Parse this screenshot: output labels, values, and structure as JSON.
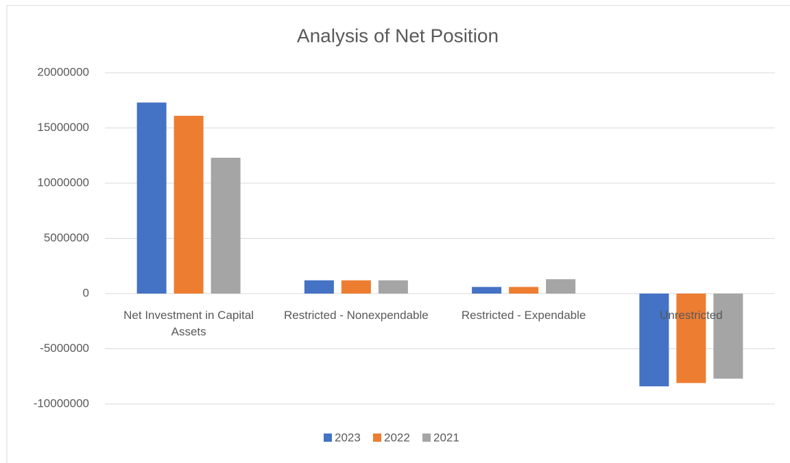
{
  "chart_data": {
    "type": "bar",
    "title": "Analysis of Net Position",
    "categories": [
      "Net Investment in Capital Assets",
      "Restricted - Nonexpendable",
      "Restricted - Expendable",
      "Unrestricted"
    ],
    "series": [
      {
        "name": "2023",
        "color": "#4472c4",
        "values": [
          17300000,
          1200000,
          600000,
          -8400000
        ]
      },
      {
        "name": "2022",
        "color": "#ed7d31",
        "values": [
          16100000,
          1200000,
          600000,
          -8100000
        ]
      },
      {
        "name": "2021",
        "color": "#a5a5a5",
        "values": [
          12300000,
          1200000,
          1300000,
          -7700000
        ]
      }
    ],
    "ylim": [
      -10000000,
      20000000
    ],
    "yticks": [
      -10000000,
      -5000000,
      0,
      5000000,
      10000000,
      15000000,
      20000000
    ],
    "grid": true,
    "legend": "bottom"
  }
}
